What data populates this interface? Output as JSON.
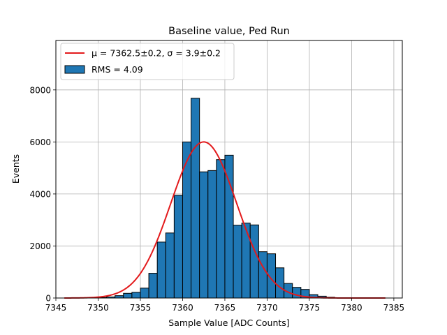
{
  "chart_data": {
    "type": "bar",
    "title": "Baseline value, Ped Run",
    "xlabel": "Sample Value [ADC Counts]",
    "ylabel": "Events",
    "xlim": [
      7345,
      7386
    ],
    "ylim": [
      0,
      9900
    ],
    "xticks": [
      7345,
      7350,
      7355,
      7360,
      7365,
      7370,
      7375,
      7380,
      7385
    ],
    "yticks": [
      0,
      2000,
      4000,
      6000,
      8000
    ],
    "grid": true,
    "legend_position": "top-left",
    "histogram": {
      "name": "RMS = 4.09",
      "color": "#1f77b4",
      "edge_color": "#000000",
      "bin_width": 1,
      "bins": [
        {
          "left": 7350,
          "count": 20
        },
        {
          "left": 7351,
          "count": 40
        },
        {
          "left": 7352,
          "count": 90
        },
        {
          "left": 7353,
          "count": 180
        },
        {
          "left": 7354,
          "count": 220
        },
        {
          "left": 7355,
          "count": 380
        },
        {
          "left": 7356,
          "count": 950
        },
        {
          "left": 7357,
          "count": 2150
        },
        {
          "left": 7358,
          "count": 2500
        },
        {
          "left": 7359,
          "count": 3950
        },
        {
          "left": 7360,
          "count": 6000
        },
        {
          "left": 7361,
          "count": 7680
        },
        {
          "left": 7362,
          "count": 4850
        },
        {
          "left": 7363,
          "count": 4900
        },
        {
          "left": 7364,
          "count": 5320
        },
        {
          "left": 7365,
          "count": 5490
        },
        {
          "left": 7366,
          "count": 2800
        },
        {
          "left": 7367,
          "count": 2880
        },
        {
          "left": 7368,
          "count": 2810
        },
        {
          "left": 7369,
          "count": 1780
        },
        {
          "left": 7370,
          "count": 1700
        },
        {
          "left": 7371,
          "count": 1160
        },
        {
          "left": 7372,
          "count": 560
        },
        {
          "left": 7373,
          "count": 410
        },
        {
          "left": 7374,
          "count": 330
        },
        {
          "left": 7375,
          "count": 130
        },
        {
          "left": 7376,
          "count": 70
        },
        {
          "left": 7377,
          "count": 30
        }
      ]
    },
    "fit": {
      "name": "μ = 7362.5±0.2, σ = 3.9±0.2",
      "color": "#e31a1c",
      "function": "gaussian",
      "mu": 7362.5,
      "sigma": 3.9,
      "amplitude": 6000,
      "x_range": [
        7346,
        7384
      ]
    }
  }
}
